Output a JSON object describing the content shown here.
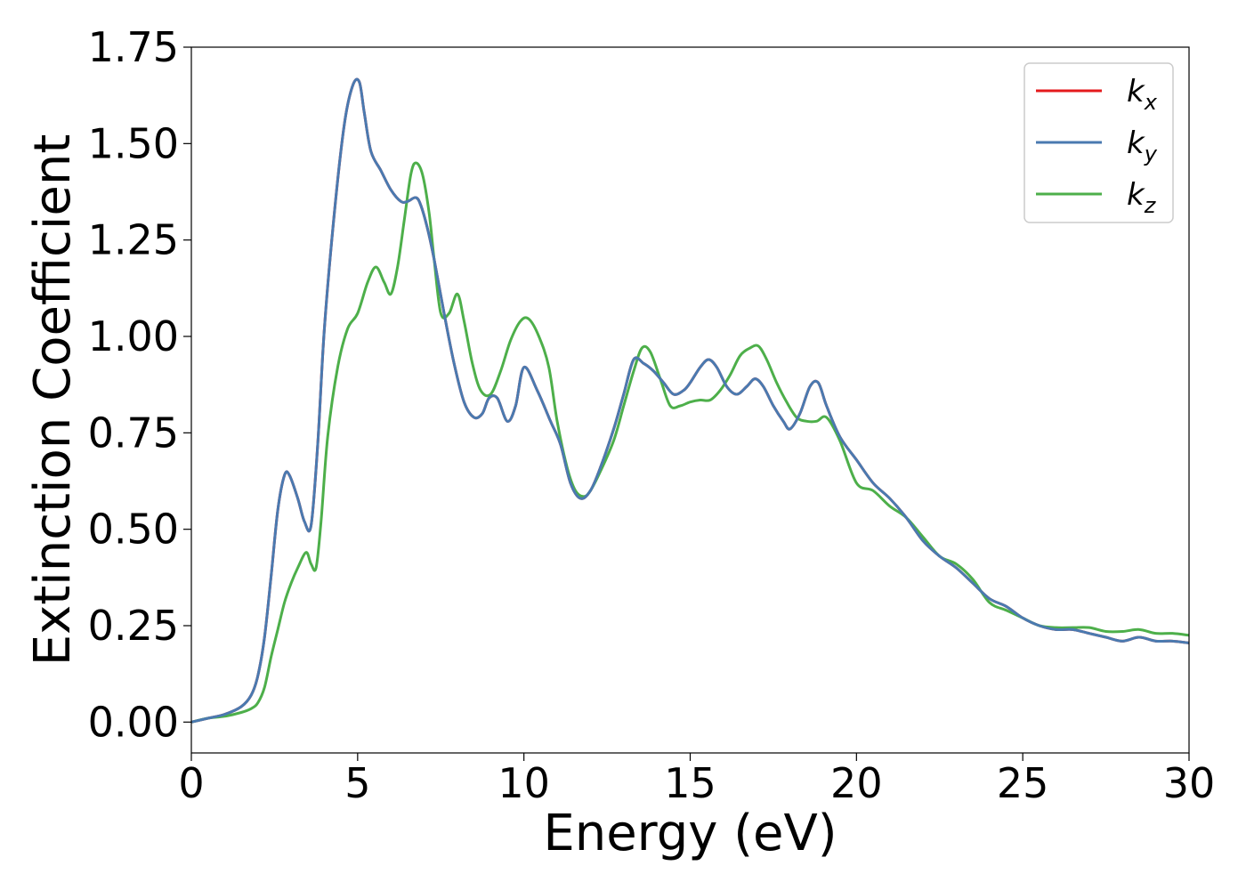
{
  "chart_data": {
    "type": "line",
    "xlabel": "Energy (eV)",
    "ylabel": "Extinction Coefficient",
    "xlim": [
      0,
      30
    ],
    "ylim": [
      -0.08,
      1.75
    ],
    "xticks": [
      0,
      5,
      10,
      15,
      20,
      25,
      30
    ],
    "xtick_labels": [
      "0",
      "5",
      "10",
      "15",
      "20",
      "25",
      "30"
    ],
    "yticks": [
      0.0,
      0.25,
      0.5,
      0.75,
      1.0,
      1.25,
      1.5,
      1.75
    ],
    "ytick_labels": [
      "0.00",
      "0.25",
      "0.50",
      "0.75",
      "1.00",
      "1.25",
      "1.50",
      "1.75"
    ],
    "grid": false,
    "legend_position": "top-right",
    "series": [
      {
        "name": "k",
        "subscript": "x",
        "color": "#e41a1c",
        "x": [
          0,
          0.5,
          1.0,
          1.5,
          1.8,
          2.0,
          2.2,
          2.4,
          2.6,
          2.8,
          2.95,
          3.2,
          3.4,
          3.6,
          3.8,
          4.0,
          4.3,
          4.6,
          4.85,
          5.05,
          5.2,
          5.4,
          5.7,
          6.0,
          6.3,
          6.5,
          6.75,
          6.9,
          7.1,
          7.3,
          7.6,
          7.9,
          8.2,
          8.5,
          8.75,
          8.95,
          9.2,
          9.5,
          9.75,
          10.0,
          10.4,
          10.8,
          11.1,
          11.4,
          11.7,
          12.0,
          12.3,
          12.7,
          13.0,
          13.3,
          13.6,
          13.9,
          14.2,
          14.5,
          14.8,
          15.0,
          15.3,
          15.55,
          15.8,
          16.1,
          16.4,
          16.7,
          16.95,
          17.2,
          17.5,
          17.8,
          18.0,
          18.3,
          18.6,
          18.85,
          19.1,
          19.5,
          20.0,
          20.5,
          21.0,
          21.5,
          22.0,
          22.5,
          23.0,
          23.5,
          24.0,
          24.5,
          25.0,
          25.5,
          26.0,
          26.5,
          27.0,
          27.5,
          28.0,
          28.5,
          29.0,
          29.5,
          30.0
        ],
        "values": [
          0.0,
          0.01,
          0.02,
          0.04,
          0.07,
          0.12,
          0.22,
          0.38,
          0.55,
          0.64,
          0.64,
          0.58,
          0.52,
          0.51,
          0.72,
          1.02,
          1.32,
          1.55,
          1.65,
          1.66,
          1.58,
          1.48,
          1.43,
          1.38,
          1.35,
          1.35,
          1.36,
          1.34,
          1.28,
          1.2,
          1.06,
          0.93,
          0.83,
          0.79,
          0.8,
          0.84,
          0.84,
          0.78,
          0.82,
          0.92,
          0.86,
          0.78,
          0.72,
          0.62,
          0.58,
          0.6,
          0.66,
          0.76,
          0.85,
          0.94,
          0.93,
          0.91,
          0.88,
          0.85,
          0.86,
          0.88,
          0.92,
          0.94,
          0.92,
          0.87,
          0.85,
          0.87,
          0.89,
          0.87,
          0.82,
          0.78,
          0.76,
          0.8,
          0.87,
          0.88,
          0.82,
          0.74,
          0.68,
          0.62,
          0.58,
          0.53,
          0.47,
          0.43,
          0.4,
          0.36,
          0.32,
          0.3,
          0.27,
          0.25,
          0.24,
          0.24,
          0.23,
          0.22,
          0.21,
          0.22,
          0.21,
          0.21,
          0.205
        ]
      },
      {
        "name": "k",
        "subscript": "y",
        "color": "#4a7ab0",
        "x": [
          0,
          0.5,
          1.0,
          1.5,
          1.8,
          2.0,
          2.2,
          2.4,
          2.6,
          2.8,
          2.95,
          3.2,
          3.4,
          3.6,
          3.8,
          4.0,
          4.3,
          4.6,
          4.85,
          5.05,
          5.2,
          5.4,
          5.7,
          6.0,
          6.3,
          6.5,
          6.75,
          6.9,
          7.1,
          7.3,
          7.6,
          7.9,
          8.2,
          8.5,
          8.75,
          8.95,
          9.2,
          9.5,
          9.75,
          10.0,
          10.4,
          10.8,
          11.1,
          11.4,
          11.7,
          12.0,
          12.3,
          12.7,
          13.0,
          13.3,
          13.6,
          13.9,
          14.2,
          14.5,
          14.8,
          15.0,
          15.3,
          15.55,
          15.8,
          16.1,
          16.4,
          16.7,
          16.95,
          17.2,
          17.5,
          17.8,
          18.0,
          18.3,
          18.6,
          18.85,
          19.1,
          19.5,
          20.0,
          20.5,
          21.0,
          21.5,
          22.0,
          22.5,
          23.0,
          23.5,
          24.0,
          24.5,
          25.0,
          25.5,
          26.0,
          26.5,
          27.0,
          27.5,
          28.0,
          28.5,
          29.0,
          29.5,
          30.0
        ],
        "values": [
          0.0,
          0.01,
          0.02,
          0.04,
          0.07,
          0.12,
          0.22,
          0.38,
          0.55,
          0.64,
          0.64,
          0.58,
          0.52,
          0.51,
          0.72,
          1.02,
          1.32,
          1.55,
          1.65,
          1.66,
          1.58,
          1.48,
          1.43,
          1.38,
          1.35,
          1.35,
          1.36,
          1.34,
          1.28,
          1.2,
          1.06,
          0.93,
          0.83,
          0.79,
          0.8,
          0.84,
          0.84,
          0.78,
          0.82,
          0.92,
          0.86,
          0.78,
          0.72,
          0.62,
          0.58,
          0.6,
          0.66,
          0.76,
          0.85,
          0.94,
          0.93,
          0.91,
          0.88,
          0.85,
          0.86,
          0.88,
          0.92,
          0.94,
          0.92,
          0.87,
          0.85,
          0.87,
          0.89,
          0.87,
          0.82,
          0.78,
          0.76,
          0.8,
          0.87,
          0.88,
          0.82,
          0.74,
          0.68,
          0.62,
          0.58,
          0.53,
          0.47,
          0.43,
          0.4,
          0.36,
          0.32,
          0.3,
          0.27,
          0.25,
          0.24,
          0.24,
          0.23,
          0.22,
          0.21,
          0.22,
          0.21,
          0.21,
          0.205
        ]
      },
      {
        "name": "k",
        "subscript": "z",
        "color": "#4daf4a",
        "x": [
          0,
          0.5,
          1.0,
          1.5,
          1.8,
          2.0,
          2.2,
          2.4,
          2.6,
          2.8,
          3.0,
          3.2,
          3.45,
          3.6,
          3.75,
          3.9,
          4.1,
          4.4,
          4.7,
          5.0,
          5.3,
          5.55,
          5.8,
          6.0,
          6.2,
          6.4,
          6.6,
          6.75,
          6.95,
          7.15,
          7.3,
          7.5,
          7.75,
          8.0,
          8.2,
          8.45,
          8.7,
          9.0,
          9.3,
          9.6,
          9.9,
          10.15,
          10.45,
          10.75,
          11.0,
          11.3,
          11.55,
          11.8,
          12.0,
          12.3,
          12.7,
          13.0,
          13.3,
          13.55,
          13.8,
          14.1,
          14.4,
          14.7,
          15.0,
          15.3,
          15.6,
          15.9,
          16.2,
          16.5,
          16.8,
          17.05,
          17.3,
          17.6,
          17.9,
          18.2,
          18.5,
          18.8,
          19.1,
          19.5,
          20.0,
          20.5,
          21.0,
          21.5,
          22.0,
          22.5,
          23.0,
          23.5,
          24.0,
          24.5,
          25.0,
          25.5,
          26.0,
          26.5,
          27.0,
          27.5,
          28.0,
          28.5,
          29.0,
          29.5,
          30.0
        ],
        "values": [
          0.0,
          0.01,
          0.015,
          0.025,
          0.035,
          0.05,
          0.09,
          0.17,
          0.24,
          0.31,
          0.36,
          0.4,
          0.44,
          0.41,
          0.4,
          0.52,
          0.74,
          0.92,
          1.02,
          1.06,
          1.14,
          1.18,
          1.14,
          1.11,
          1.18,
          1.3,
          1.42,
          1.45,
          1.42,
          1.32,
          1.2,
          1.06,
          1.06,
          1.11,
          1.04,
          0.93,
          0.86,
          0.85,
          0.91,
          0.99,
          1.04,
          1.045,
          1.0,
          0.92,
          0.78,
          0.66,
          0.6,
          0.585,
          0.6,
          0.65,
          0.73,
          0.82,
          0.91,
          0.97,
          0.96,
          0.89,
          0.82,
          0.82,
          0.83,
          0.835,
          0.835,
          0.86,
          0.9,
          0.95,
          0.97,
          0.975,
          0.94,
          0.88,
          0.83,
          0.79,
          0.78,
          0.78,
          0.79,
          0.73,
          0.62,
          0.6,
          0.56,
          0.53,
          0.48,
          0.43,
          0.41,
          0.37,
          0.31,
          0.29,
          0.27,
          0.25,
          0.245,
          0.245,
          0.245,
          0.235,
          0.235,
          0.24,
          0.23,
          0.23,
          0.225
        ]
      }
    ]
  }
}
